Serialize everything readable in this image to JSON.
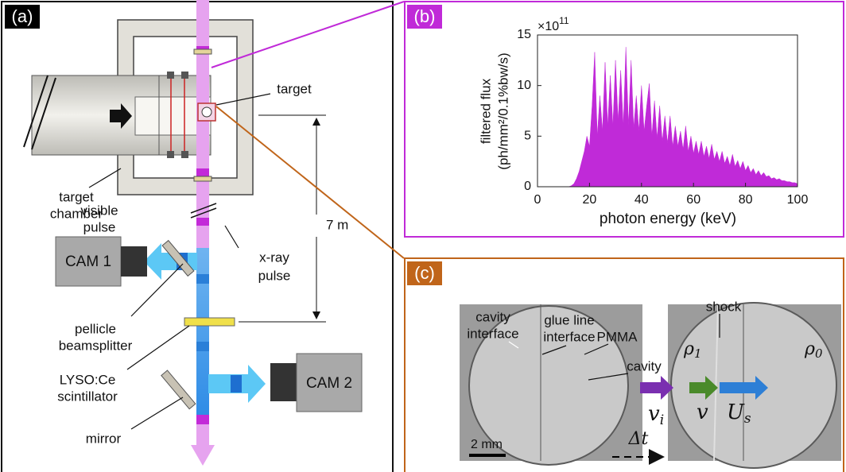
{
  "panel_a": {
    "label": "(a)",
    "target": "target",
    "target_chamber": [
      "target",
      "chamber"
    ],
    "visible_pulse": [
      "visible",
      "pulse"
    ],
    "distance": "7 m",
    "cam1": "CAM 1",
    "xray_pulse": [
      "x-ray",
      "pulse"
    ],
    "pellicle": [
      "pellicle",
      "beamsplitter"
    ],
    "scintillator": [
      "LYSO:Ce",
      "scintillator"
    ],
    "cam2": "CAM 2",
    "mirror": "mirror"
  },
  "chart_data": {
    "type": "area",
    "panel_label": "(b)",
    "y_label": [
      "filtered flux",
      "(ph/mm²/0.1%bw/s)"
    ],
    "x_label": "photon energy (keV)",
    "y_multiplier": {
      "base": "×10",
      "exponent": "11"
    },
    "color": "#c02ad8",
    "x": [
      10,
      11,
      12,
      13,
      14,
      15,
      16,
      17,
      18,
      19,
      20,
      21,
      22,
      23,
      24,
      25,
      26,
      27,
      28,
      29,
      30,
      31,
      32,
      33,
      34,
      35,
      36,
      37,
      38,
      39,
      40,
      41,
      42,
      43,
      44,
      45,
      46,
      47,
      48,
      49,
      50,
      51,
      52,
      53,
      54,
      55,
      56,
      57,
      58,
      59,
      60,
      61,
      62,
      63,
      64,
      65,
      66,
      67,
      68,
      69,
      70,
      71,
      72,
      73,
      74,
      75,
      76,
      77,
      78,
      79,
      80,
      81,
      82,
      83,
      84,
      85,
      86,
      87,
      88,
      89,
      90,
      91,
      92,
      93,
      94,
      95,
      96,
      97,
      98,
      99,
      100
    ],
    "values": [
      0,
      0,
      0,
      0.1,
      0.3,
      0.8,
      1.5,
      2.5,
      3.5,
      5,
      4,
      8,
      13.3,
      5,
      9,
      5.5,
      12.3,
      6,
      11,
      6,
      12.5,
      6.5,
      11.5,
      6,
      13.8,
      6,
      12.5,
      5.8,
      9,
      5.5,
      10,
      5.5,
      8,
      10.2,
      5,
      8.5,
      4.8,
      8,
      4.5,
      7,
      4.3,
      7,
      4,
      6,
      4,
      5.5,
      3.7,
      6,
      3.5,
      5,
      3.3,
      4.5,
      3.2,
      4.5,
      3,
      4,
      2.8,
      4.2,
      2.7,
      3.5,
      2.5,
      3.5,
      2.3,
      3,
      2.1,
      3.2,
      2,
      2.6,
      1.8,
      2.5,
      1.6,
      2.1,
      1.4,
      1.8,
      1.2,
      1.6,
      1.1,
      1.4,
      1,
      1.1,
      0.8,
      0.9,
      0.7,
      0.8,
      0.6,
      0.6,
      0.5,
      0.5,
      0.4,
      0.4,
      0.3
    ],
    "xlim": [
      0,
      100
    ],
    "xticks": [
      0,
      20,
      40,
      60,
      80,
      100
    ],
    "ylim": [
      0,
      15
    ],
    "yticks": [
      0,
      5,
      10,
      15
    ]
  },
  "panel_c": {
    "label": "(c)",
    "cavity_interface": [
      "cavity",
      "interface"
    ],
    "glue_line_interface": [
      "glue line",
      "interface"
    ],
    "pmma": "PMMA",
    "cavity": "cavity",
    "shock": "shock",
    "rho1": {
      "symbol": "ρ",
      "sub": "1"
    },
    "rho0": {
      "symbol": "ρ",
      "sub": "0"
    },
    "vi": {
      "symbol": "v",
      "sub": "i"
    },
    "v": "v",
    "us": {
      "symbol": "U",
      "sub": "s"
    },
    "scale": "2 mm",
    "dt": "Δt"
  }
}
